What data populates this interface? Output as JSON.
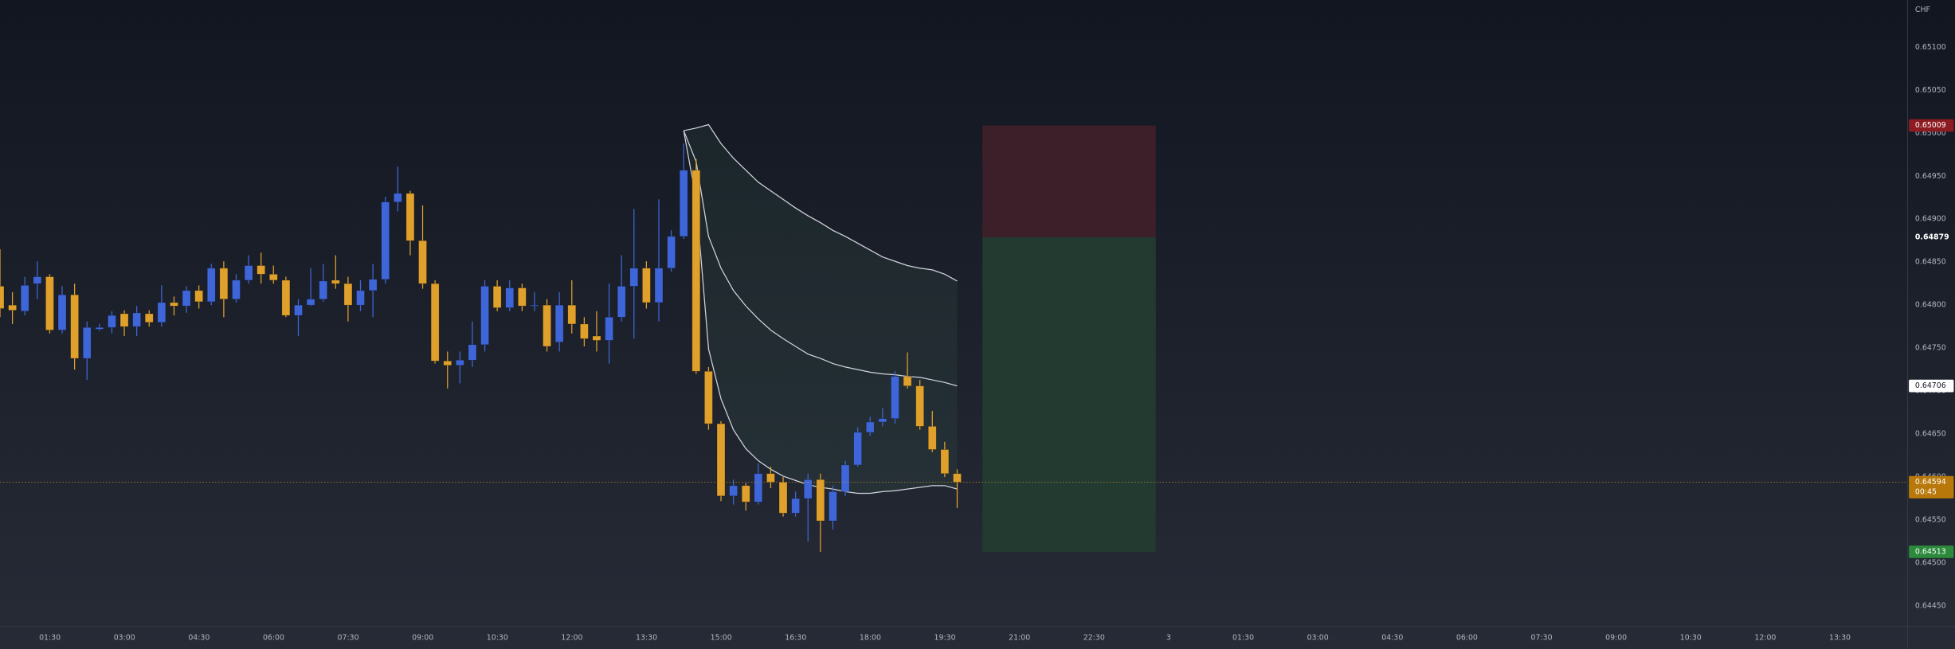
{
  "chart_data": {
    "type": "candlestick",
    "currency": "CHF",
    "up_color": "#3f66d8",
    "down_color": "#dfa02c",
    "x": [
      "00:30",
      "00:45",
      "01:00",
      "01:15",
      "01:30",
      "01:45",
      "02:00",
      "02:15",
      "02:30",
      "02:45",
      "03:00",
      "03:15",
      "03:30",
      "03:45",
      "04:00",
      "04:15",
      "04:30",
      "04:45",
      "05:00",
      "05:15",
      "05:30",
      "05:45",
      "06:00",
      "06:15",
      "06:30",
      "06:45",
      "07:00",
      "07:15",
      "07:30",
      "07:45",
      "08:00",
      "08:15",
      "08:30",
      "08:45",
      "09:00",
      "09:15",
      "09:30",
      "09:45",
      "10:00",
      "10:15",
      "10:30",
      "10:45",
      "11:00",
      "11:15",
      "11:30",
      "11:45",
      "12:00",
      "12:15",
      "12:30",
      "12:45",
      "13:00",
      "13:15",
      "13:30",
      "13:45",
      "14:00",
      "14:15",
      "14:30",
      "14:45",
      "15:00",
      "15:15",
      "15:30",
      "15:45",
      "16:00",
      "16:15",
      "16:30",
      "16:45",
      "17:00",
      "17:15",
      "17:30",
      "17:45",
      "18:00",
      "18:15",
      "18:30",
      "18:45",
      "19:00",
      "19:15",
      "19:30",
      "19:45"
    ],
    "open": [
      0.64822,
      0.648,
      0.64793,
      0.64825,
      0.64833,
      0.64771,
      0.64812,
      0.64738,
      0.64772,
      0.64774,
      0.6479,
      0.64775,
      0.6479,
      0.6478,
      0.64803,
      0.64799,
      0.64817,
      0.64804,
      0.64843,
      0.64807,
      0.64829,
      0.64846,
      0.64836,
      0.64829,
      0.64788,
      0.648,
      0.64807,
      0.64829,
      0.64825,
      0.648,
      0.64817,
      0.6483,
      0.6492,
      0.6493,
      0.64875,
      0.64825,
      0.64735,
      0.6473,
      0.64736,
      0.64754,
      0.64822,
      0.64797,
      0.6482,
      0.64799,
      0.648,
      0.64757,
      0.648,
      0.64778,
      0.64764,
      0.64759,
      0.64786,
      0.64822,
      0.64843,
      0.64803,
      0.64843,
      0.6488,
      0.64957,
      0.64723,
      0.64662,
      0.64578,
      0.6459,
      0.64571,
      0.64604,
      0.64594,
      0.64558,
      0.64575,
      0.64597,
      0.64549,
      0.64583,
      0.64614,
      0.64652,
      0.64664,
      0.64668,
      0.64717,
      0.64706,
      0.64659,
      0.64632,
      0.64604
    ],
    "high": [
      0.64865,
      0.64815,
      0.64833,
      0.64851,
      0.64836,
      0.64822,
      0.64825,
      0.64781,
      0.64778,
      0.64793,
      0.64794,
      0.64799,
      0.64794,
      0.64823,
      0.6481,
      0.64822,
      0.64823,
      0.64848,
      0.64851,
      0.64836,
      0.64858,
      0.64861,
      0.64846,
      0.64833,
      0.64807,
      0.64843,
      0.64848,
      0.64858,
      0.64833,
      0.64829,
      0.64848,
      0.64926,
      0.64961,
      0.64933,
      0.64916,
      0.64829,
      0.64746,
      0.64746,
      0.64781,
      0.64829,
      0.64829,
      0.64829,
      0.64825,
      0.64815,
      0.64807,
      0.64815,
      0.64829,
      0.64786,
      0.64793,
      0.64825,
      0.64858,
      0.64912,
      0.64851,
      0.64923,
      0.64887,
      0.64988,
      0.6497,
      0.64728,
      0.64665,
      0.64597,
      0.64593,
      0.64616,
      0.64612,
      0.646,
      0.64583,
      0.64604,
      0.64604,
      0.6459,
      0.64619,
      0.64658,
      0.6467,
      0.6468,
      0.64723,
      0.64745,
      0.64713,
      0.64677,
      0.64641,
      0.64609
    ],
    "low": [
      0.64786,
      0.64778,
      0.64788,
      0.64807,
      0.64767,
      0.64767,
      0.64725,
      0.64713,
      0.6477,
      0.64767,
      0.64764,
      0.64764,
      0.64775,
      0.64775,
      0.64788,
      0.64791,
      0.64796,
      0.648,
      0.64786,
      0.64803,
      0.64825,
      0.64825,
      0.64825,
      0.64786,
      0.64764,
      0.64799,
      0.64804,
      0.64819,
      0.64781,
      0.64793,
      0.64786,
      0.64825,
      0.64909,
      0.64858,
      0.64819,
      0.64732,
      0.64703,
      0.64709,
      0.64728,
      0.64746,
      0.64793,
      0.64793,
      0.64793,
      0.64793,
      0.64746,
      0.64746,
      0.64767,
      0.64752,
      0.64746,
      0.64732,
      0.64781,
      0.64761,
      0.64796,
      0.64781,
      0.64839,
      0.64877,
      0.6472,
      0.64655,
      0.64572,
      0.64568,
      0.64561,
      0.64568,
      0.64587,
      0.64554,
      0.64554,
      0.64525,
      0.64513,
      0.64539,
      0.64578,
      0.64612,
      0.64648,
      0.64659,
      0.64662,
      0.64703,
      0.64655,
      0.64629,
      0.646,
      0.64564
    ],
    "close": [
      0.64796,
      0.64794,
      0.64823,
      0.64833,
      0.64771,
      0.64812,
      0.64738,
      0.64774,
      0.64774,
      0.64788,
      0.64775,
      0.64791,
      0.6478,
      0.64803,
      0.64799,
      0.64817,
      0.64804,
      0.64843,
      0.64807,
      0.64829,
      0.64846,
      0.64836,
      0.64829,
      0.64788,
      0.648,
      0.64807,
      0.64828,
      0.64825,
      0.648,
      0.64817,
      0.6483,
      0.6492,
      0.6493,
      0.64875,
      0.64825,
      0.64735,
      0.6473,
      0.64736,
      0.64754,
      0.64822,
      0.64797,
      0.6482,
      0.64799,
      0.648,
      0.64752,
      0.648,
      0.64778,
      0.64761,
      0.64759,
      0.64786,
      0.64822,
      0.64843,
      0.64803,
      0.64843,
      0.6488,
      0.64957,
      0.64723,
      0.64662,
      0.64578,
      0.6459,
      0.64571,
      0.64604,
      0.64594,
      0.64558,
      0.64575,
      0.64597,
      0.64549,
      0.64583,
      0.64614,
      0.64652,
      0.64664,
      0.64668,
      0.64717,
      0.64706,
      0.64659,
      0.64632,
      0.64604,
      0.64594
    ],
    "countdown": "00:45",
    "bands": {
      "x": [
        "14:15",
        "14:30",
        "14:45",
        "15:00",
        "15:15",
        "15:30",
        "15:45",
        "16:00",
        "16:15",
        "16:30",
        "16:45",
        "17:00",
        "17:15",
        "17:30",
        "17:45",
        "18:00",
        "18:15",
        "18:30",
        "18:45",
        "19:00",
        "19:15",
        "19:30",
        "19:45"
      ],
      "fill": "rgba(76,150,110,0.10)",
      "series": [
        {
          "color": "#d1d4dc",
          "values": [
            0.65003,
            0.65006,
            0.6501,
            0.64988,
            0.64971,
            0.64957,
            0.64943,
            0.64933,
            0.64923,
            0.64913,
            0.64904,
            0.64896,
            0.64887,
            0.6488,
            0.64872,
            0.64864,
            0.64856,
            0.64851,
            0.64846,
            0.64843,
            0.64841,
            0.64836,
            0.64828
          ]
        },
        {
          "color": "#d1d4dc",
          "values": [
            0.65003,
            0.64967,
            0.6488,
            0.64843,
            0.64817,
            0.64799,
            0.64784,
            0.64771,
            0.64761,
            0.64752,
            0.64743,
            0.64738,
            0.64732,
            0.64728,
            0.64725,
            0.64722,
            0.6472,
            0.64719,
            0.64717,
            0.64716,
            0.64713,
            0.6471,
            0.64706
          ]
        },
        {
          "color": "#d1d4dc",
          "values": [
            0.65003,
            0.64923,
            0.64749,
            0.64691,
            0.64655,
            0.64633,
            0.64619,
            0.64609,
            0.64601,
            0.64596,
            0.64591,
            0.64588,
            0.64586,
            0.64583,
            0.64581,
            0.64581,
            0.64583,
            0.64584,
            0.64586,
            0.64588,
            0.6459,
            0.6459,
            0.64586
          ]
        }
      ]
    },
    "position": {
      "stop": 0.65009,
      "entry": 0.64879,
      "target": 0.64513,
      "loss_color": "#3c1f29",
      "profit_color": "#233a31"
    },
    "ylim": [
      0.64426,
      0.65155
    ],
    "yticks": [
      {
        "value": 0.6445,
        "label": "0.64450"
      },
      {
        "value": 0.645,
        "label": "0.64500"
      },
      {
        "value": 0.6455,
        "label": "0.64550"
      },
      {
        "value": 0.646,
        "label": "0.64600"
      },
      {
        "value": 0.6465,
        "label": "0.64650"
      },
      {
        "value": 0.647,
        "label": "0.64700"
      },
      {
        "value": 0.6475,
        "label": "0.64750"
      },
      {
        "value": 0.648,
        "label": "0.64800"
      },
      {
        "value": 0.6485,
        "label": "0.64850"
      },
      {
        "value": 0.649,
        "label": "0.64900"
      },
      {
        "value": 0.6495,
        "label": "0.64950"
      },
      {
        "value": 0.65,
        "label": "0.65000"
      },
      {
        "value": 0.6505,
        "label": "0.65050"
      },
      {
        "value": 0.651,
        "label": "0.65100"
      }
    ],
    "xtick_labels": [
      "01:30",
      "03:00",
      "04:30",
      "06:00",
      "07:30",
      "09:00",
      "10:30",
      "12:00",
      "13:30",
      "15:00",
      "16:30",
      "18:00",
      "19:30",
      "21:00",
      "22:30",
      "3",
      "01:30",
      "03:00",
      "04:30",
      "06:00",
      "07:30",
      "09:00",
      "10:30",
      "12:00",
      "13:30"
    ]
  }
}
